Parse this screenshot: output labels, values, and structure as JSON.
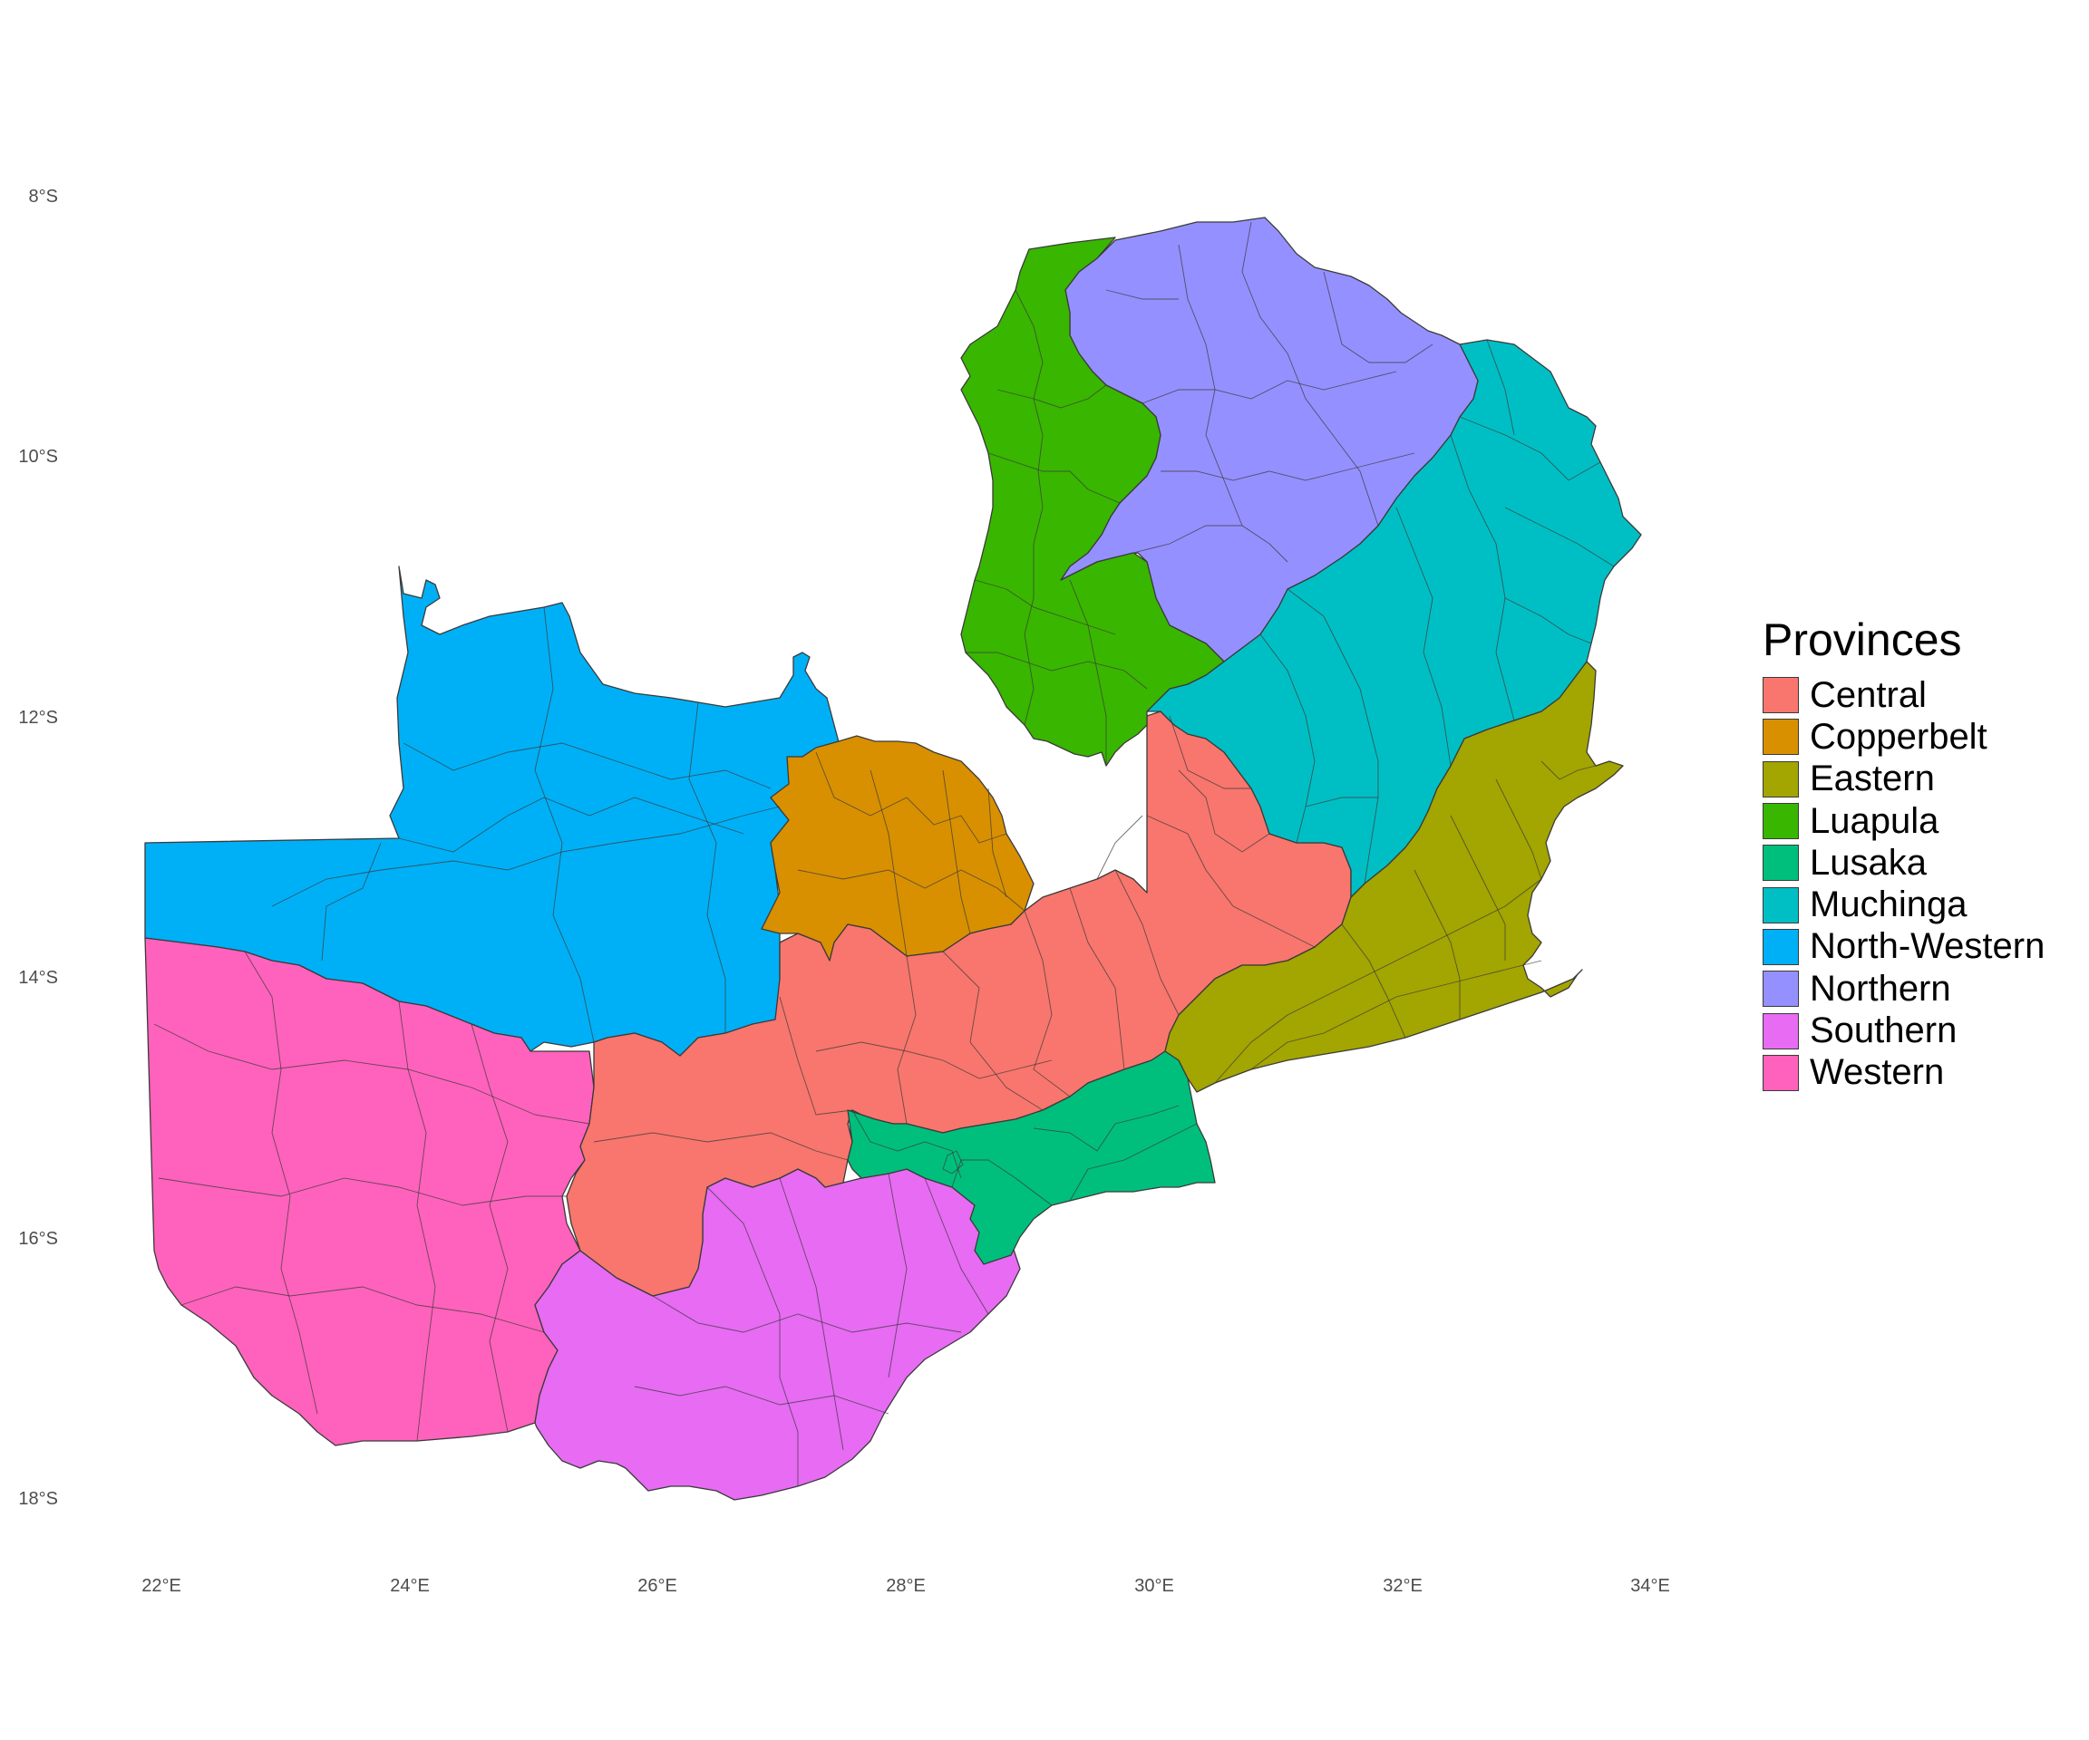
{
  "legend": {
    "title": "Provinces",
    "items": [
      {
        "name": "Central",
        "color": "#F8766D"
      },
      {
        "name": "Copperbelt",
        "color": "#D89000"
      },
      {
        "name": "Eastern",
        "color": "#A3A500"
      },
      {
        "name": "Luapula",
        "color": "#39B600"
      },
      {
        "name": "Lusaka",
        "color": "#00BF7D"
      },
      {
        "name": "Muchinga",
        "color": "#00BFC4"
      },
      {
        "name": "North-Western",
        "color": "#00B0F6"
      },
      {
        "name": "Northern",
        "color": "#9590FF"
      },
      {
        "name": "Southern",
        "color": "#E76BF3"
      },
      {
        "name": "Western",
        "color": "#FF62BC"
      }
    ]
  },
  "axes": {
    "x_ticks": [
      "22°E",
      "24°E",
      "26°E",
      "28°E",
      "30°E",
      "32°E",
      "34°E"
    ],
    "y_ticks": [
      "8°S",
      "10°S",
      "12°S",
      "14°S",
      "16°S",
      "18°S"
    ]
  }
}
